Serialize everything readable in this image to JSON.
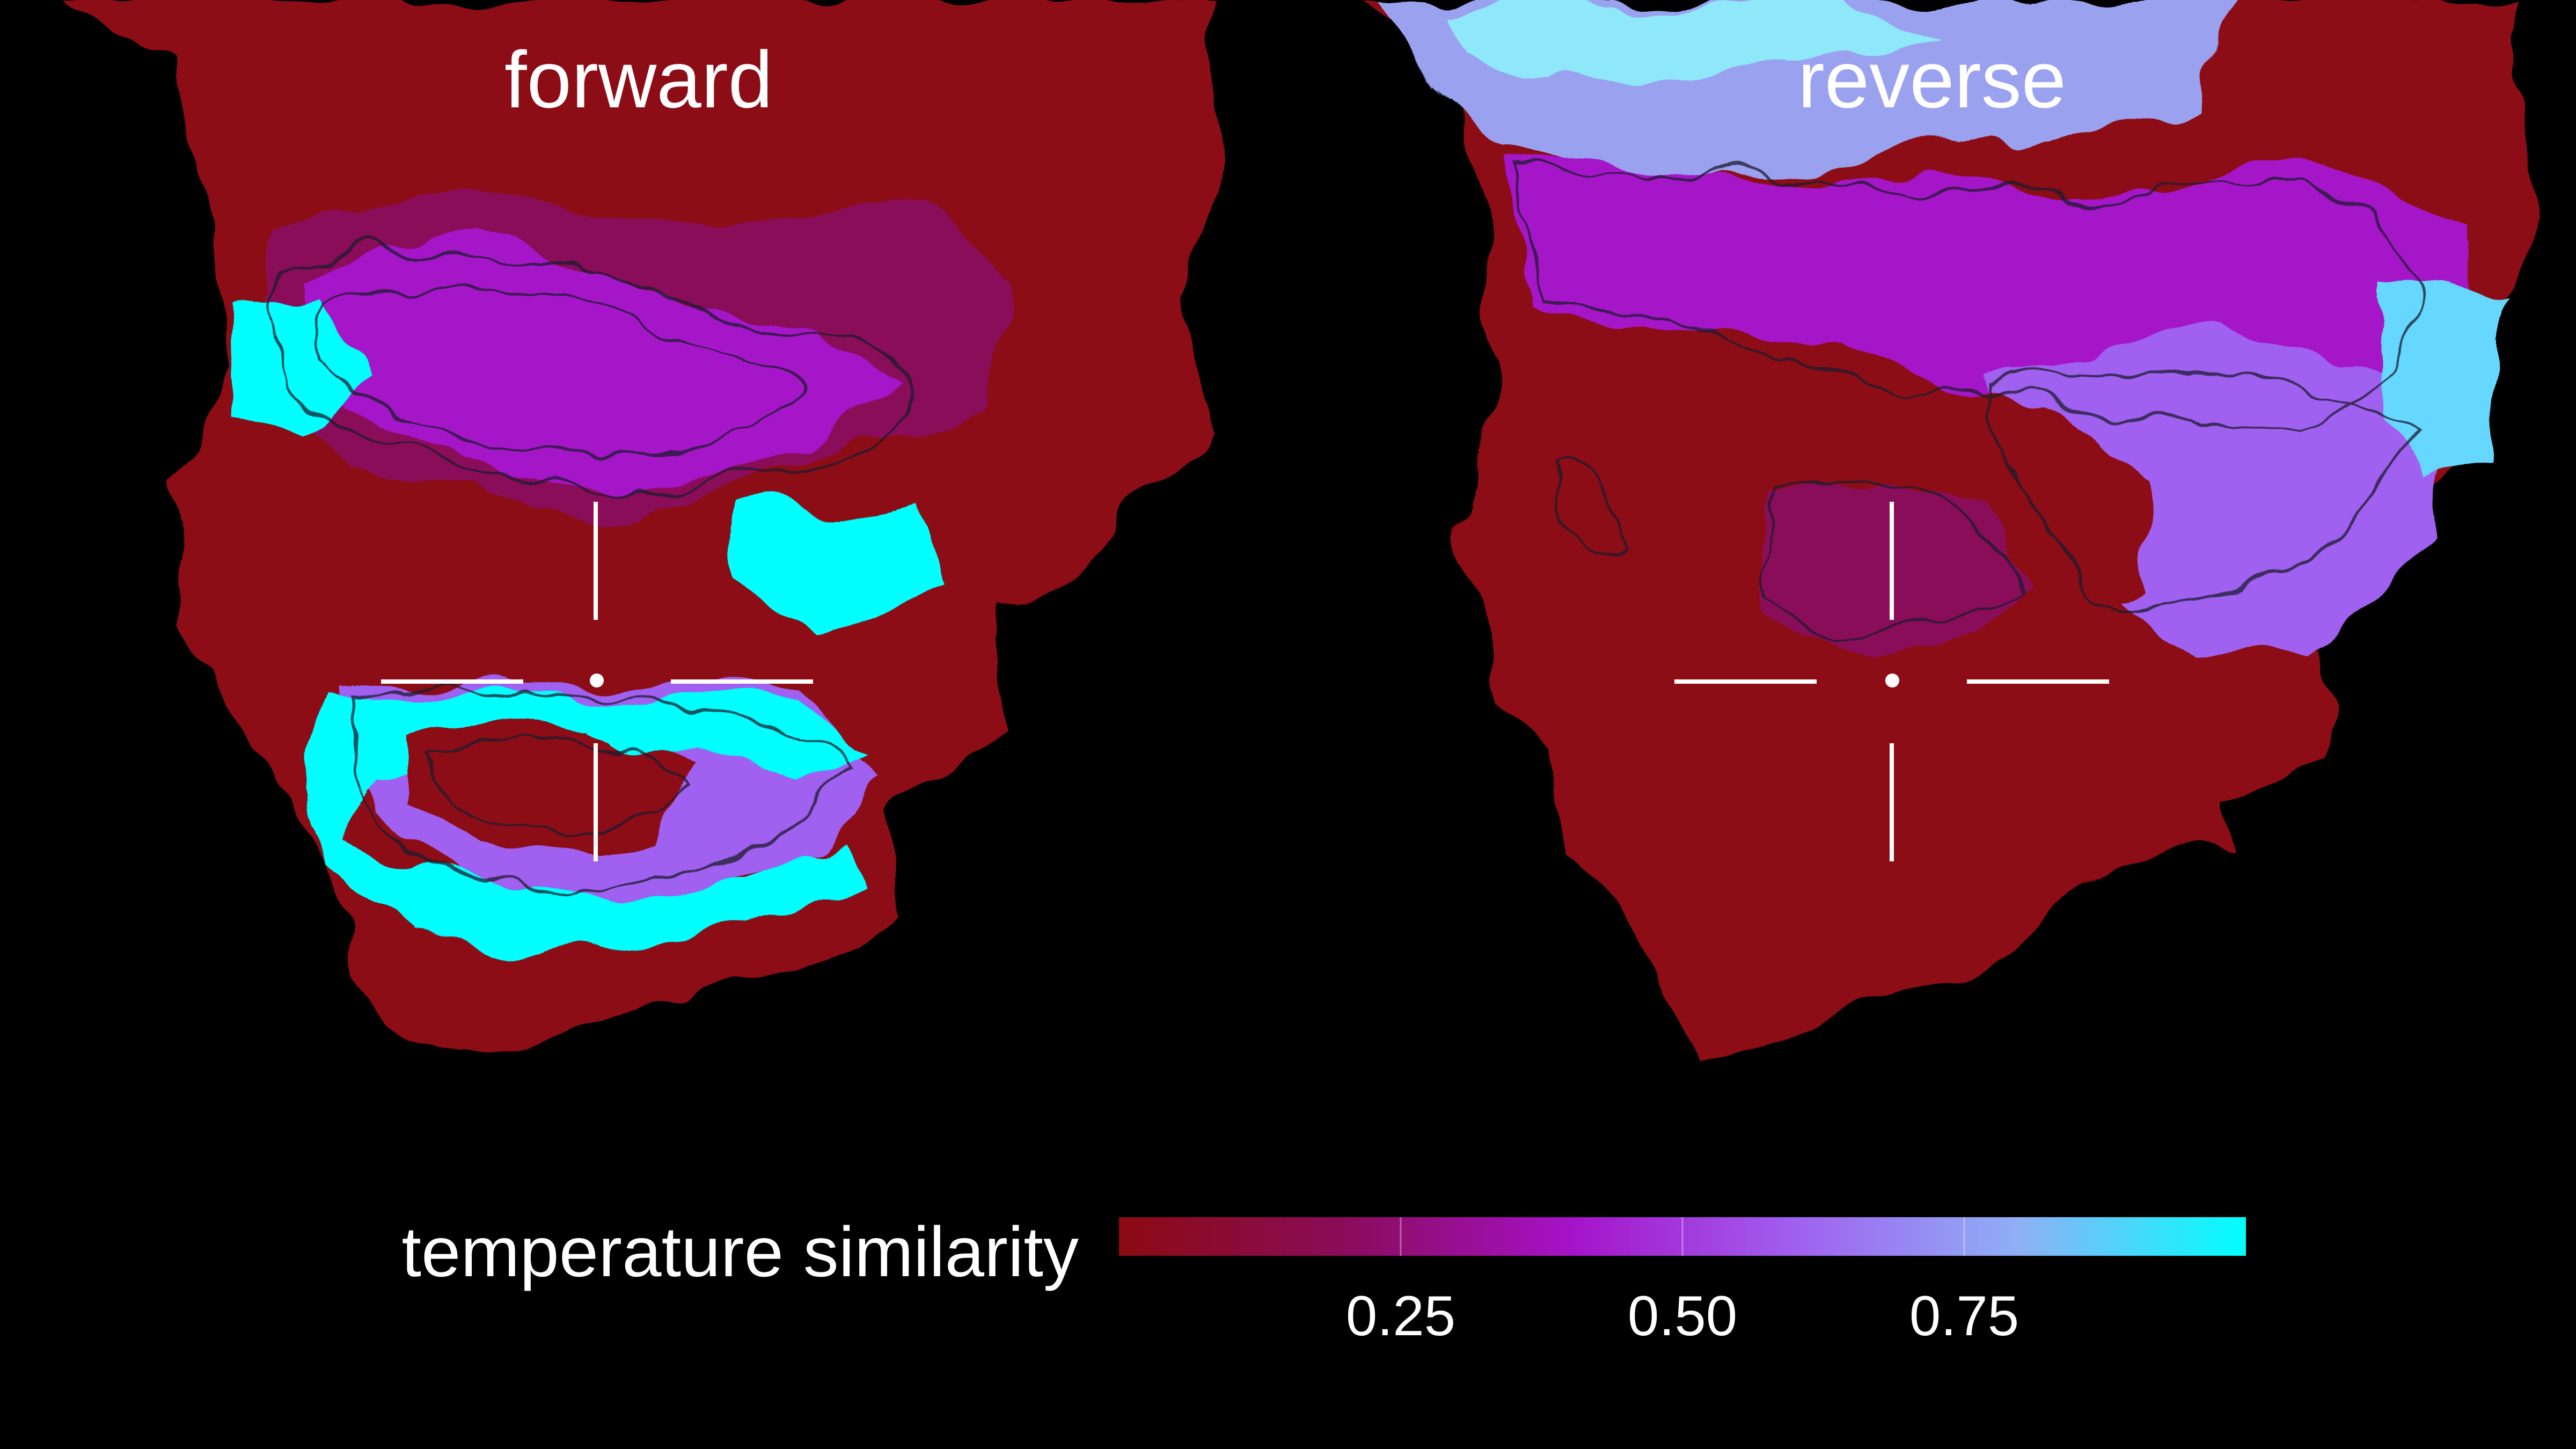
{
  "chart_data": {
    "type": "heatmap",
    "panels": [
      {
        "title": "forward"
      },
      {
        "title": "reverse"
      }
    ],
    "colorbar": {
      "label": "temperature similarity",
      "ticks": [
        0.25,
        0.5,
        0.75
      ],
      "tick_labels": [
        "0.25",
        "0.50",
        "0.75"
      ],
      "range": [
        0,
        1
      ],
      "colormap": [
        "#8c0a12",
        "#8a0c5a",
        "#a512c8",
        "#a060f0",
        "#8fb0f5",
        "#00ffff"
      ]
    },
    "background_color": "#000000",
    "crosshair_color": "#ffffff"
  }
}
